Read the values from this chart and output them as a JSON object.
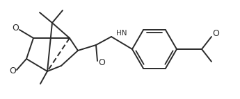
{
  "bg_color": "#ffffff",
  "line_color": "#2a2a2a",
  "line_width": 1.4,
  "font_size": 7.5,
  "figsize": [
    3.45,
    1.43
  ],
  "dpi": 100,
  "xlim": [
    0,
    345
  ],
  "ylim": [
    0,
    143
  ]
}
